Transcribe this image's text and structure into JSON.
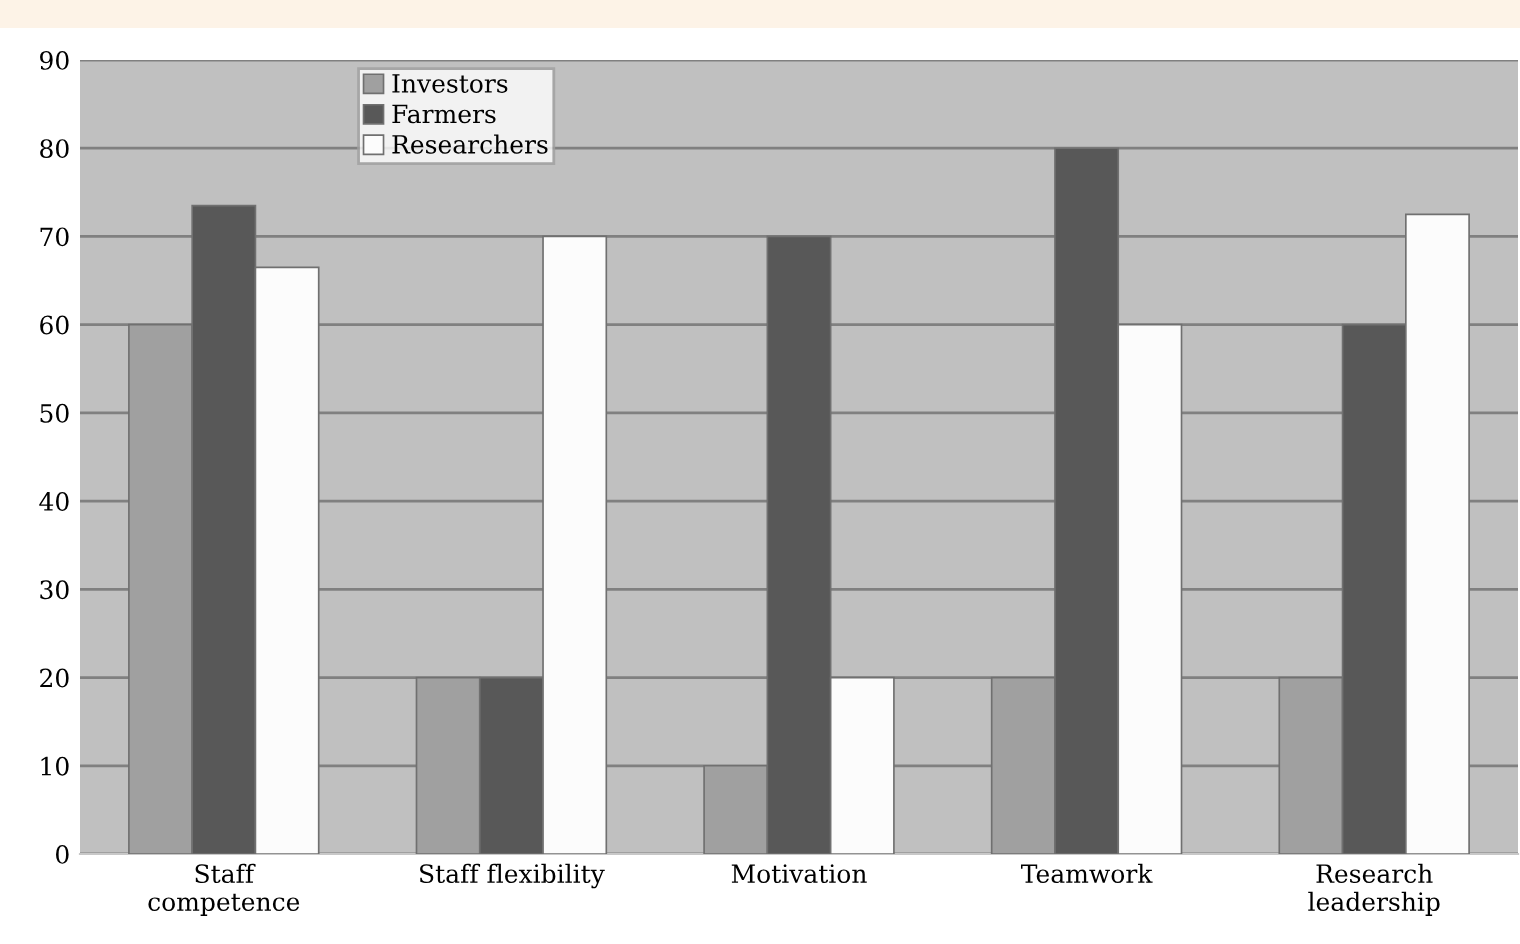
{
  "chart_data": {
    "type": "bar",
    "categories": [
      "Staff\ncompetence",
      "Staff flexibility",
      "Motivation",
      "Teamwork",
      "Research\nleadership"
    ],
    "series": [
      {
        "name": "Investors",
        "color": "#a0a0a0",
        "values": [
          60,
          20,
          10,
          20,
          20
        ]
      },
      {
        "name": "Farmers",
        "color": "#585858",
        "values": [
          73.5,
          20,
          70,
          80,
          60
        ]
      },
      {
        "name": "Researchers",
        "color": "#fcfcfc",
        "values": [
          66.5,
          70,
          20,
          60,
          72.5
        ]
      }
    ],
    "ylim": [
      0,
      90
    ],
    "yticks": [
      0,
      10,
      20,
      30,
      40,
      50,
      60,
      70,
      80,
      90
    ],
    "grid": "y",
    "legend": "top"
  }
}
